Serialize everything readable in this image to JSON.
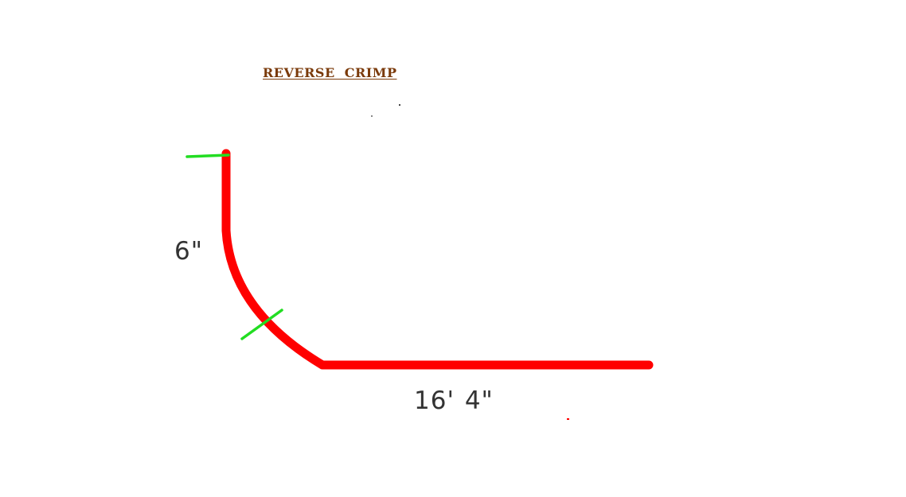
{
  "diagram": {
    "title": "REVERSE CRIMP",
    "vertical_dimension": "6\"",
    "horizontal_dimension": "16' 4\"",
    "colors": {
      "title": "#7a3a0a",
      "profile": "#ff0000",
      "markers": "#22dd22",
      "dimension_text": "#333333"
    }
  }
}
